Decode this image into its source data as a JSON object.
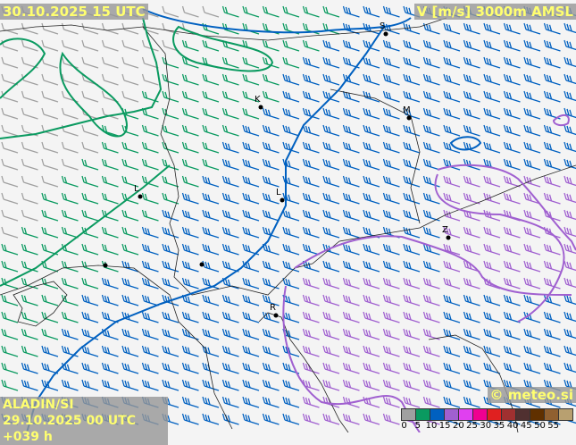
{
  "header": {
    "valid_time": "30.10.2025 15 UTC",
    "parameter": "V [m/s] 3000m AMSL"
  },
  "footer": {
    "model": "ALADIN/SI",
    "run": "29.10.2025 00 UTC +039 h",
    "copyright": "© meteo.si"
  },
  "legend": {
    "values": [
      "0",
      "5",
      "10",
      "15",
      "20",
      "25",
      "30",
      "35",
      "40",
      "45",
      "50",
      "55"
    ],
    "colors": [
      "#a0a0a0",
      "#0a9a60",
      "#0060c0",
      "#a060d0",
      "#e040f0",
      "#f00090",
      "#e02020",
      "#a03030",
      "#503030",
      "#603000",
      "#906030",
      "#b8a070"
    ]
  },
  "cities": [
    {
      "label": "S"
    },
    {
      "label": "K"
    },
    {
      "label": "M"
    },
    {
      "label": "L"
    },
    {
      "label": "L"
    },
    {
      "label": "Z"
    },
    {
      "label": "R"
    }
  ]
}
